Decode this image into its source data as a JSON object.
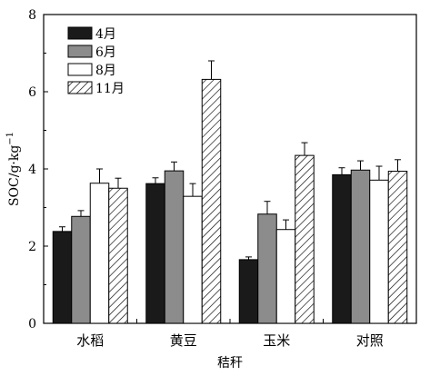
{
  "chart_data": {
    "type": "bar",
    "categories": [
      "水稻",
      "黄豆",
      "玉米",
      "对照"
    ],
    "series": [
      {
        "name": "4月",
        "fill": "solid-black",
        "values": [
          2.38,
          3.62,
          1.65,
          3.85
        ],
        "errors": [
          0.12,
          0.15,
          0.07,
          0.18
        ]
      },
      {
        "name": "6月",
        "fill": "solid-gray",
        "values": [
          2.77,
          3.95,
          2.83,
          3.97
        ],
        "errors": [
          0.15,
          0.23,
          0.33,
          0.24
        ]
      },
      {
        "name": "8月",
        "fill": "white",
        "values": [
          3.63,
          3.29,
          2.43,
          3.71
        ],
        "errors": [
          0.37,
          0.33,
          0.25,
          0.36
        ]
      },
      {
        "name": "11月",
        "fill": "hatch",
        "values": [
          3.5,
          6.32,
          4.35,
          3.94
        ],
        "errors": [
          0.26,
          0.48,
          0.33,
          0.3
        ]
      }
    ],
    "xlabel": "秸秆",
    "ylabel": "SOC/g·kg",
    "ylabel_sup": "−1",
    "ylim": [
      0,
      8
    ],
    "yticks": [
      "0",
      "2",
      "4",
      "6",
      "8"
    ],
    "legend_position": "top-left",
    "grid": false,
    "colors": {
      "black": "#1a1a1a",
      "gray": "#8c8c8c",
      "white": "#ffffff",
      "hatch": "#000000"
    }
  }
}
